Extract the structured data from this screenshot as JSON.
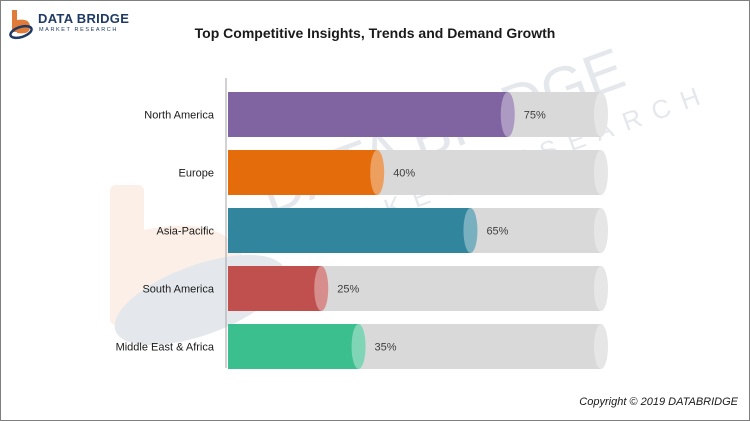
{
  "brand": {
    "name": "DATA BRIDGE",
    "tagline": "MARKET RESEARCH",
    "colors": {
      "navy": "#1f3a64",
      "orange": "#e07b39"
    }
  },
  "copyright": "Copyright © 2019 DATABRIDGE",
  "chart_data": {
    "type": "bar",
    "orientation": "horizontal",
    "title": "Top Competitive Insights, Trends and Demand Growth",
    "categories": [
      "North America",
      "Europe",
      "Asia-Pacific",
      "South America",
      "Middle East & Africa"
    ],
    "values": [
      75,
      40,
      65,
      25,
      35
    ],
    "value_labels": [
      "75%",
      "40%",
      "65%",
      "25%",
      "35%"
    ],
    "xlim": [
      0,
      100
    ],
    "colors": [
      "#8064a2",
      "#e46c0a",
      "#31859c",
      "#c0504d",
      "#3bbf8f"
    ],
    "track_color": "#d9d9d9",
    "grid": false,
    "legend": "none"
  }
}
